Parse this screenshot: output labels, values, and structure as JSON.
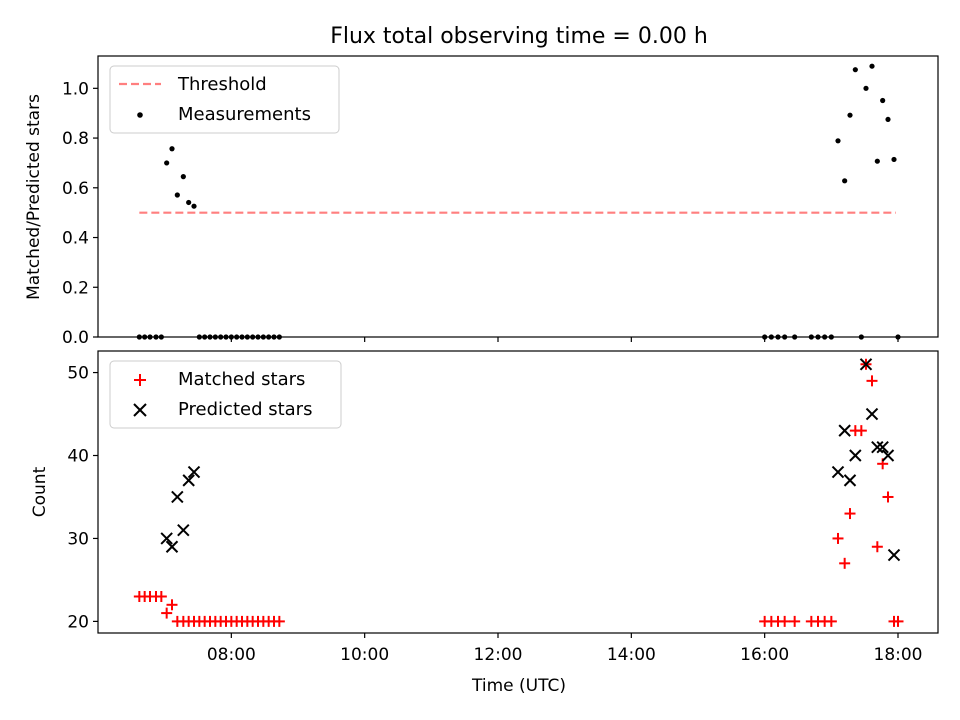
{
  "figure": {
    "title": "Flux total observing time = 0.00 h"
  },
  "chart_data": [
    {
      "type": "scatter",
      "ylabel": "Matched/Predicted stars",
      "xlabel": "",
      "ylim": [
        0,
        1.13
      ],
      "yticks": [
        0.0,
        0.2,
        0.4,
        0.6,
        0.8,
        1.0
      ],
      "ytick_labels": [
        "0.0",
        "0.2",
        "0.4",
        "0.6",
        "0.8",
        "1.0"
      ],
      "legend": "top-left",
      "series": [
        {
          "name": "Threshold",
          "kind": "dashed-line",
          "color": "#ff7f7f",
          "x": [
            6.62,
            17.97
          ],
          "y": [
            0.5,
            0.5
          ]
        },
        {
          "name": "Measurements",
          "kind": "dot",
          "color": "#000000",
          "x": [
            6.62,
            6.7,
            6.78,
            6.87,
            6.95,
            7.03,
            7.11,
            7.19,
            7.28,
            7.36,
            7.44,
            7.52,
            7.6,
            7.68,
            7.76,
            7.84,
            7.92,
            8.0,
            8.08,
            8.16,
            8.24,
            8.32,
            8.4,
            8.48,
            8.56,
            8.64,
            8.72,
            16.0,
            16.1,
            16.2,
            16.3,
            16.45,
            16.7,
            16.8,
            16.9,
            17.0,
            17.1,
            17.2,
            17.28,
            17.36,
            17.45,
            17.52,
            17.61,
            17.69,
            17.77,
            17.85,
            17.94,
            18.0
          ],
          "y": [
            0,
            0,
            0,
            0,
            0,
            0.7,
            0.757,
            0.571,
            0.645,
            0.541,
            0.526,
            0,
            0,
            0,
            0,
            0,
            0,
            0,
            0,
            0,
            0,
            0,
            0,
            0,
            0,
            0,
            0,
            0,
            0,
            0,
            0,
            0,
            0,
            0,
            0,
            0,
            0.789,
            0.628,
            0.892,
            1.075,
            0,
            1.0,
            1.089,
            0.707,
            0.951,
            0.875,
            0.714,
            0
          ]
        }
      ]
    },
    {
      "type": "scatter",
      "ylabel": "Count",
      "xlabel": "Time (UTC)",
      "xlim": [
        6.0,
        18.6
      ],
      "ylim": [
        18.6,
        52.6
      ],
      "yticks": [
        20,
        30,
        40,
        50
      ],
      "xticks": [
        8,
        10,
        12,
        14,
        16,
        18
      ],
      "xtick_labels": [
        "08:00",
        "10:00",
        "12:00",
        "14:00",
        "16:00",
        "18:00"
      ],
      "legend": "top-left",
      "series": [
        {
          "name": "Matched stars",
          "kind": "plus",
          "color": "#ff0000",
          "x": [
            6.62,
            6.7,
            6.78,
            6.87,
            6.95,
            7.03,
            7.11,
            7.19,
            7.28,
            7.36,
            7.44,
            7.52,
            7.6,
            7.68,
            7.76,
            7.84,
            7.92,
            8.0,
            8.08,
            8.16,
            8.24,
            8.32,
            8.4,
            8.48,
            8.56,
            8.64,
            8.72,
            16.0,
            16.1,
            16.2,
            16.3,
            16.45,
            16.7,
            16.8,
            16.9,
            17.0,
            17.1,
            17.2,
            17.28,
            17.36,
            17.45,
            17.52,
            17.61,
            17.69,
            17.77,
            17.85,
            17.94,
            18.0
          ],
          "y": [
            23,
            23,
            23,
            23,
            23,
            21,
            22,
            20,
            20,
            20,
            20,
            20,
            20,
            20,
            20,
            20,
            20,
            20,
            20,
            20,
            20,
            20,
            20,
            20,
            20,
            20,
            20,
            20,
            20,
            20,
            20,
            20,
            20,
            20,
            20,
            20,
            30,
            27,
            33,
            43,
            43,
            51,
            49,
            29,
            39,
            35,
            20,
            20
          ]
        },
        {
          "name": "Predicted stars",
          "kind": "x",
          "color": "#000000",
          "x": [
            7.03,
            7.11,
            7.19,
            7.28,
            7.36,
            7.44,
            17.1,
            17.2,
            17.28,
            17.36,
            17.52,
            17.61,
            17.69,
            17.77,
            17.85,
            17.94
          ],
          "y": [
            30,
            29,
            35,
            31,
            37,
            38,
            38,
            43,
            37,
            40,
            51,
            45,
            41,
            41,
            40,
            28
          ]
        }
      ]
    }
  ]
}
